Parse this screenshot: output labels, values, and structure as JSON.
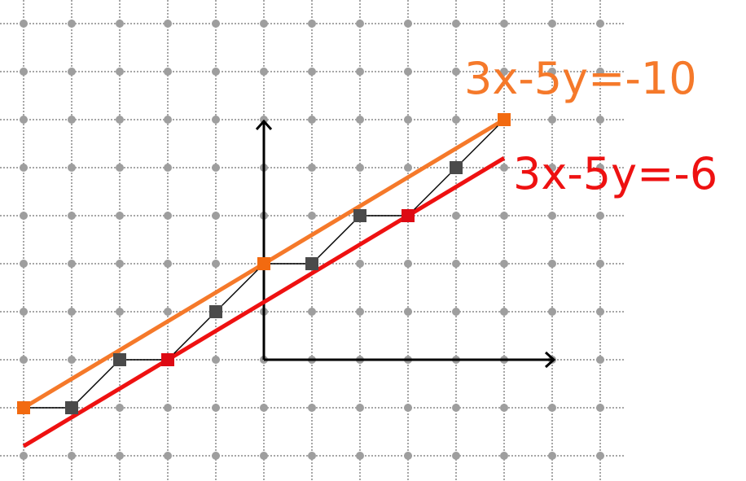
{
  "chart_data": {
    "type": "line",
    "grid": true,
    "xlim": [
      -5.5,
      7.5
    ],
    "ylim": [
      -2.5,
      7.5
    ],
    "series": [
      {
        "name": "3x-5y=-10",
        "color": "#f5792a",
        "points": [
          [
            -5,
            -1
          ],
          [
            5,
            5
          ]
        ]
      },
      {
        "name": "3x-5y=-6",
        "color": "#ee1111",
        "points": [
          [
            -5,
            -1.8
          ],
          [
            5,
            4.2
          ]
        ]
      }
    ],
    "path": {
      "color": "#000000",
      "points": [
        [
          -5,
          -1
        ],
        [
          -4,
          -1
        ],
        [
          -3,
          0
        ],
        [
          -2,
          0
        ],
        [
          -1,
          1
        ],
        [
          0,
          2
        ],
        [
          1,
          2
        ],
        [
          2,
          3
        ],
        [
          3,
          3
        ],
        [
          4,
          4
        ],
        [
          5,
          5
        ]
      ]
    },
    "markers": [
      {
        "x": -5,
        "y": -1,
        "color": "#f26a10"
      },
      {
        "x": -4,
        "y": -1,
        "color": "#4a4a4a"
      },
      {
        "x": -3,
        "y": 0,
        "color": "#4a4a4a"
      },
      {
        "x": -2,
        "y": 0,
        "color": "#dd0a14"
      },
      {
        "x": -1,
        "y": 1,
        "color": "#4a4a4a"
      },
      {
        "x": 0,
        "y": 2,
        "color": "#f26a10"
      },
      {
        "x": 1,
        "y": 2,
        "color": "#4a4a4a"
      },
      {
        "x": 2,
        "y": 3,
        "color": "#4a4a4a"
      },
      {
        "x": 3,
        "y": 3,
        "color": "#dd0a14"
      },
      {
        "x": 4,
        "y": 4,
        "color": "#4a4a4a"
      },
      {
        "x": 5,
        "y": 5,
        "color": "#f26a10"
      }
    ],
    "labels": [
      {
        "text": "3x-5y=-10",
        "color": "#f5792a"
      },
      {
        "text": "3x-5y=-6",
        "color": "#ee1111"
      }
    ]
  }
}
